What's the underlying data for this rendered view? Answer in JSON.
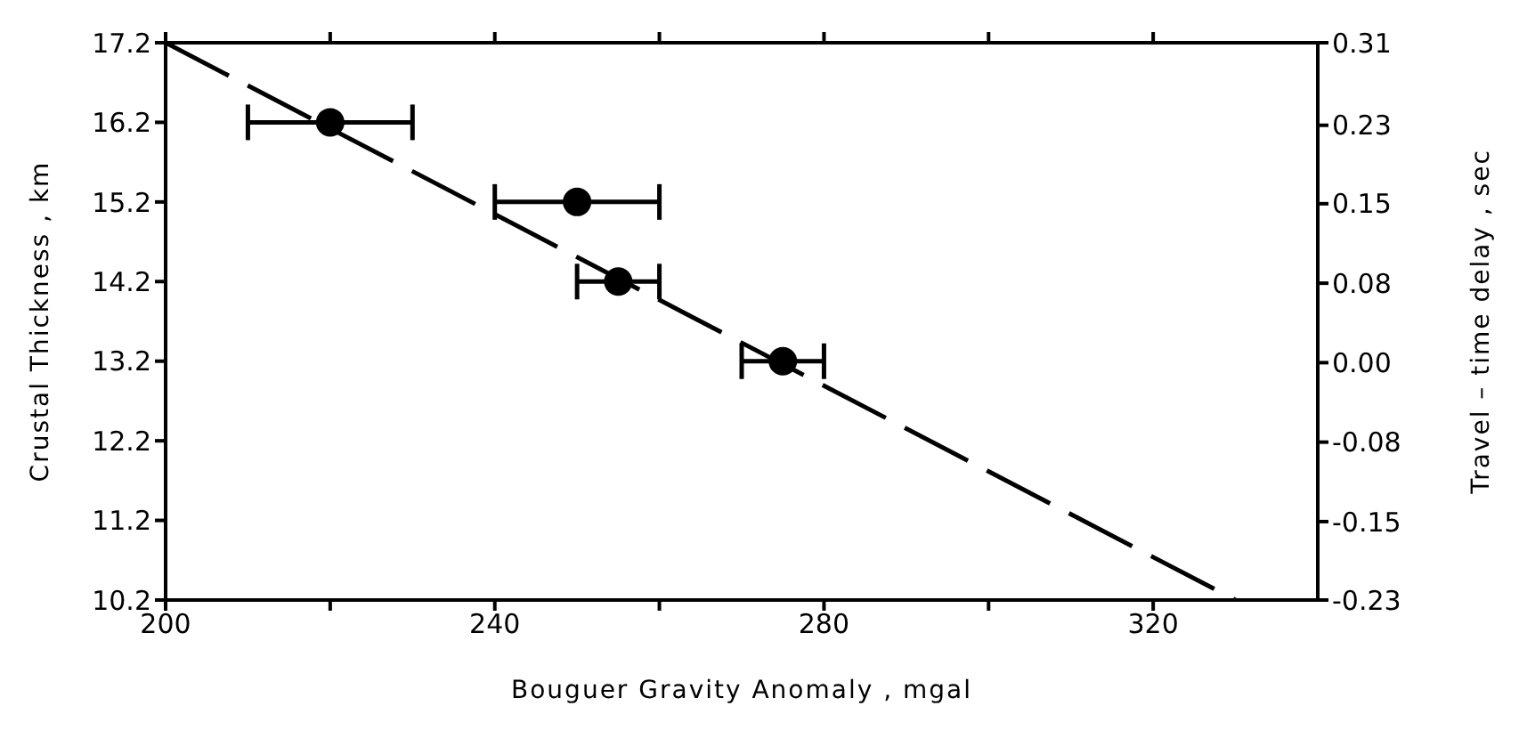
{
  "chart_data": {
    "type": "scatter",
    "xlabel": "Bouguer  Gravity  Anomaly , mgal",
    "ylabel": "Crustal  Thickness , km",
    "y2label": "Travel – time  delay , sec",
    "xlim": [
      200,
      340
    ],
    "xticks": [
      200,
      {
        "value": 220,
        "label": null
      },
      240,
      {
        "value": 260,
        "label": null
      },
      280,
      {
        "value": 300,
        "label": null
      },
      320
    ],
    "ylim": [
      10.2,
      17.2
    ],
    "yticks": [
      10.2,
      11.2,
      12.2,
      13.2,
      14.2,
      15.2,
      16.2,
      17.2
    ],
    "y2lim": [
      -0.23,
      0.31
    ],
    "y2ticks": [
      -0.23,
      {
        "value": -0.154,
        "label": "-0.15"
      },
      {
        "value": -0.077,
        "label": "-0.08"
      },
      {
        "value": 0,
        "label": "0.00"
      },
      {
        "value": 0.077,
        "label": "0.08"
      },
      {
        "value": 0.154,
        "label": "0.15"
      },
      0.23,
      0.31
    ],
    "series": [
      {
        "x": [
          220,
          250,
          255,
          275
        ],
        "values": [
          16.2,
          15.2,
          14.2,
          13.2
        ],
        "xerrors": [
          10,
          10,
          5,
          5
        ],
        "color": "#000000",
        "marker": "circle"
      },
      {
        "type": "line",
        "x": [
          200,
          330
        ],
        "values": [
          17.2,
          10.2
        ],
        "color": "#000000",
        "line_style": "dashed",
        "marker": "none"
      }
    ]
  }
}
